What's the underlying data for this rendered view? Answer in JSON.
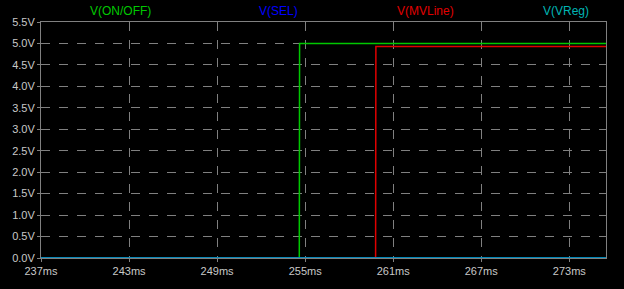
{
  "chart_data": {
    "type": "line",
    "x": [
      237,
      254.6,
      254.62,
      259.8,
      259.82,
      275.5
    ],
    "series": [
      {
        "name": "V(ON/OFF)",
        "color": "#00c800",
        "values": [
          0,
          0,
          5.0,
          5.0,
          5.0,
          5.0
        ]
      },
      {
        "name": "V(MVLine)",
        "color": "#e00000",
        "values": [
          0,
          0,
          0,
          0,
          4.93,
          4.93
        ]
      },
      {
        "name": "V(SEL)",
        "color": "#0000ff",
        "values": [
          0,
          0,
          0,
          0,
          0,
          0
        ]
      },
      {
        "name": "V(VReg)",
        "color": "#00b4b4",
        "values": [
          0,
          0,
          0,
          0,
          0,
          0
        ]
      }
    ],
    "xlim": [
      237,
      275.5
    ],
    "xticks": [
      {
        "value": 237,
        "label": "237ms"
      },
      {
        "value": 243,
        "label": "243ms"
      },
      {
        "value": 249,
        "label": "249ms"
      },
      {
        "value": 255,
        "label": "255ms"
      },
      {
        "value": 261,
        "label": "261ms"
      },
      {
        "value": 267,
        "label": "267ms"
      },
      {
        "value": 273,
        "label": "273ms"
      }
    ],
    "ylim": [
      0,
      5.5
    ],
    "yticks": [
      {
        "value": 0,
        "label": "0.0V"
      },
      {
        "value": 0.5,
        "label": "0.5V"
      },
      {
        "value": 1.0,
        "label": "1.0V"
      },
      {
        "value": 1.5,
        "label": "1.5V"
      },
      {
        "value": 2.0,
        "label": "2.0V"
      },
      {
        "value": 2.5,
        "label": "2.5V"
      },
      {
        "value": 3.0,
        "label": "3.0V"
      },
      {
        "value": 3.5,
        "label": "3.5V"
      },
      {
        "value": 4.0,
        "label": "4.0V"
      },
      {
        "value": 4.5,
        "label": "4.5V"
      },
      {
        "value": 5.0,
        "label": "5.0V"
      },
      {
        "value": 5.5,
        "label": "5.5V"
      }
    ],
    "grid": true
  }
}
